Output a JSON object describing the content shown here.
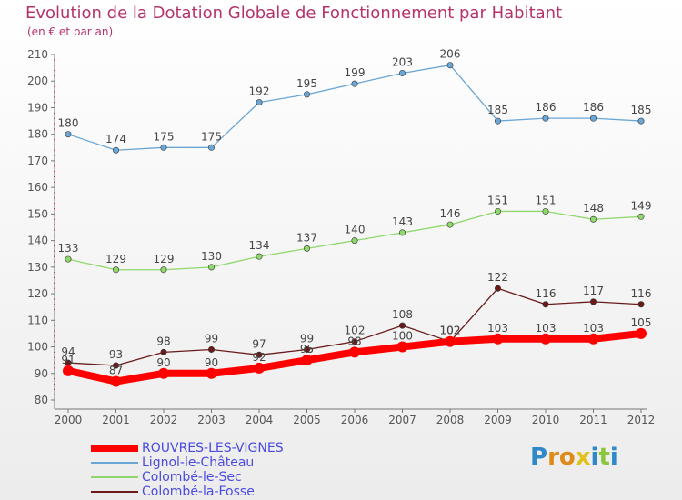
{
  "chart_data": {
    "type": "line",
    "title": "Evolution de la Dotation Globale de Fonctionnement par Habitant",
    "subtitle": "(en € et par an)",
    "x": [
      "2000",
      "2001",
      "2002",
      "2003",
      "2004",
      "2005",
      "2006",
      "2007",
      "2008",
      "2009",
      "2010",
      "2011",
      "2012"
    ],
    "ylim": [
      80,
      210
    ],
    "yticks": [
      80,
      90,
      100,
      110,
      120,
      130,
      140,
      150,
      160,
      170,
      180,
      190,
      200,
      210
    ],
    "grid": false,
    "legend_placement": "bottom-left",
    "series": [
      {
        "name": "ROUVRES-LES-VIGNES",
        "color": "#ff0000",
        "values": [
          91,
          87,
          90,
          90,
          92,
          95,
          98,
          100,
          102,
          103,
          103,
          103,
          105
        ]
      },
      {
        "name": "Lignol-le-Château",
        "color": "#6aa6d6",
        "values": [
          180,
          174,
          175,
          175,
          192,
          195,
          199,
          203,
          206,
          185,
          186,
          186,
          185
        ]
      },
      {
        "name": "Colombé-le-Sec",
        "color": "#8fd86b",
        "values": [
          133,
          129,
          129,
          130,
          134,
          137,
          140,
          143,
          146,
          151,
          151,
          148,
          149
        ]
      },
      {
        "name": "Colombé-la-Fosse",
        "color": "#6b1a1a",
        "values": [
          94,
          93,
          98,
          99,
          97,
          99,
          102,
          108,
          102,
          122,
          116,
          117,
          116
        ]
      }
    ]
  },
  "logo": {
    "letters": [
      "P",
      "r",
      "o",
      "x",
      "i",
      "t",
      "i"
    ],
    "colors": [
      "#2f88c8",
      "#e08a1a",
      "#e08a1a",
      "#e0c21a",
      "#2f88c8",
      "#8cc63f",
      "#2f88c8"
    ]
  }
}
